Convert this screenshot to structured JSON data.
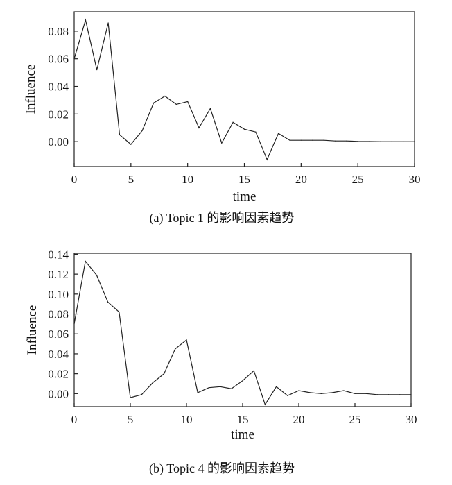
{
  "chart_data": [
    {
      "type": "line",
      "title": "",
      "xlabel": "time",
      "ylabel": "Influence",
      "caption": "(a) Topic 1 的影响因素趋势",
      "xlim": [
        0,
        30
      ],
      "ylim": [
        -0.018,
        0.094
      ],
      "xticks": [
        0,
        5,
        10,
        15,
        20,
        25,
        30
      ],
      "xtick_labels": [
        "0",
        "5",
        "10",
        "15",
        "20",
        "25",
        "30"
      ],
      "yticks": [
        0.0,
        0.02,
        0.04,
        0.06,
        0.08
      ],
      "ytick_labels": [
        "0.00",
        "0.02",
        "0.04",
        "0.06",
        "0.08"
      ],
      "grid": false,
      "series": [
        {
          "x": [
            0,
            1,
            2,
            3,
            4,
            5,
            6,
            7,
            8,
            9,
            10,
            11,
            12,
            13,
            14,
            15,
            16,
            17,
            18,
            19,
            20,
            21,
            22,
            23,
            24,
            25,
            26,
            27,
            28,
            29,
            30
          ],
          "y": [
            0.06,
            0.088,
            0.052,
            0.086,
            0.005,
            -0.002,
            0.008,
            0.028,
            0.033,
            0.027,
            0.029,
            0.01,
            0.024,
            -0.001,
            0.014,
            0.009,
            0.007,
            -0.013,
            0.006,
            0.001,
            0.001,
            0.001,
            0.001,
            0.0005,
            0.0005,
            0.0002,
            0.0001,
            0.0,
            0.0,
            0.0,
            0.0
          ]
        }
      ]
    },
    {
      "type": "line",
      "title": "",
      "xlabel": "time",
      "ylabel": "Influence",
      "caption": "(b) Topic 4 的影响因素趋势",
      "xlim": [
        0,
        30
      ],
      "ylim": [
        -0.013,
        0.141
      ],
      "xticks": [
        0,
        5,
        10,
        15,
        20,
        25,
        30
      ],
      "xtick_labels": [
        "0",
        "5",
        "10",
        "15",
        "20",
        "25",
        "30"
      ],
      "yticks": [
        0.0,
        0.02,
        0.04,
        0.06,
        0.08,
        0.1,
        0.12,
        0.14
      ],
      "ytick_labels": [
        "0.00",
        "0.02",
        "0.04",
        "0.06",
        "0.08",
        "0.10",
        "0.12",
        "0.14"
      ],
      "grid": false,
      "series": [
        {
          "x": [
            0,
            1,
            2,
            3,
            4,
            5,
            6,
            7,
            8,
            9,
            10,
            11,
            12,
            13,
            14,
            15,
            16,
            17,
            18,
            19,
            20,
            21,
            22,
            23,
            24,
            25,
            26,
            27,
            28,
            29,
            30
          ],
          "y": [
            0.07,
            0.133,
            0.119,
            0.092,
            0.082,
            -0.004,
            -0.001,
            0.011,
            0.02,
            0.045,
            0.054,
            0.001,
            0.006,
            0.007,
            0.005,
            0.013,
            0.023,
            -0.011,
            0.007,
            -0.002,
            0.003,
            0.001,
            0.0,
            0.001,
            0.003,
            0.0,
            0.0,
            -0.001,
            -0.001,
            -0.001,
            -0.001
          ]
        }
      ]
    }
  ]
}
